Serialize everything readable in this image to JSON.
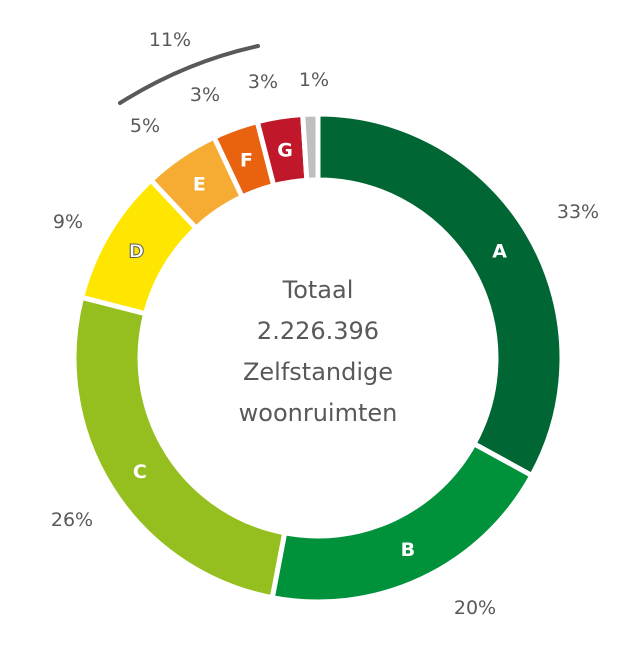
{
  "chart_data": {
    "type": "pie",
    "donut": true,
    "categories": [
      "A",
      "B",
      "C",
      "D",
      "E",
      "F",
      "G",
      ""
    ],
    "values": [
      33,
      20,
      26,
      9,
      5,
      3,
      3,
      1
    ],
    "data_labels": [
      "33%",
      "20%",
      "26%",
      "9%",
      "5%",
      "3%",
      "3%",
      "1%"
    ],
    "colors": [
      "#006633",
      "#00913B",
      "#95BF1F",
      "#FFE600",
      "#F6AC33",
      "#E8620F",
      "#C0182A",
      "#BFBFBF"
    ],
    "letter_colors": [
      "#ffffff",
      "#ffffff",
      "#ffffff",
      "#ffffff",
      "#ffffff",
      "#ffffff",
      "#ffffff",
      "#ffffff"
    ],
    "start": "top",
    "direction": "clockwise",
    "group_annotation": {
      "label": "11%",
      "covers": [
        "E",
        "F",
        "G"
      ]
    },
    "center_text": [
      "Totaal",
      "2.226.396",
      "Zelfstandige",
      "woonruimten"
    ]
  }
}
